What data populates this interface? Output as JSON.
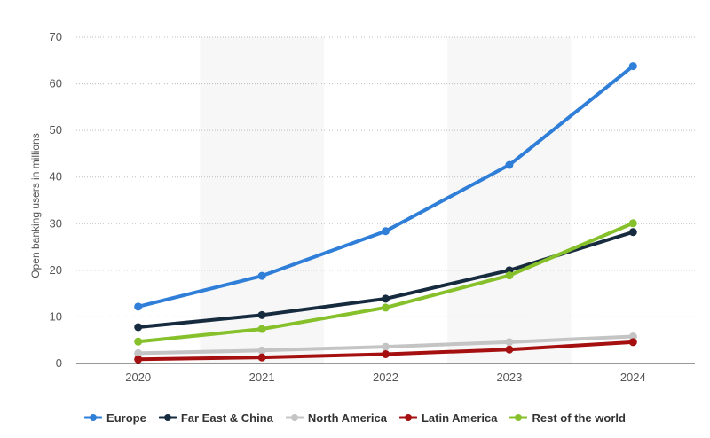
{
  "chart_data": {
    "type": "line",
    "title": "",
    "xlabel": "",
    "ylabel": "Open banking users in millions",
    "categories": [
      "2020",
      "2021",
      "2022",
      "2023",
      "2024"
    ],
    "ylim": [
      0,
      70
    ],
    "yticks": [
      0,
      10,
      20,
      30,
      40,
      50,
      60,
      70
    ],
    "grid": true,
    "legend_position": "bottom",
    "series": [
      {
        "name": "Europe",
        "color": "#2f7ed8",
        "values": [
          12.2,
          18.8,
          28.4,
          42.6,
          63.8
        ]
      },
      {
        "name": "Far East & China",
        "color": "#172b3f",
        "values": [
          7.8,
          10.4,
          13.9,
          20.0,
          28.2
        ]
      },
      {
        "name": "North America",
        "color": "#c4c4c4",
        "values": [
          2.2,
          2.8,
          3.6,
          4.6,
          5.8
        ]
      },
      {
        "name": "Latin America",
        "color": "#a50f0f",
        "values": [
          0.9,
          1.3,
          2.0,
          3.0,
          4.6
        ]
      },
      {
        "name": "Rest of the world",
        "color": "#86c02b",
        "values": [
          4.7,
          7.4,
          12.0,
          18.9,
          30.1
        ]
      }
    ]
  }
}
